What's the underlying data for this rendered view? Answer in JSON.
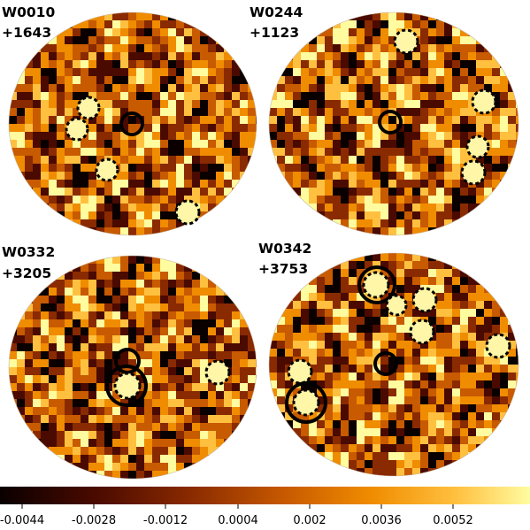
{
  "panels": [
    {
      "label_line1": "W0010",
      "label_line2": "+1643"
    },
    {
      "label_line1": "W0244",
      "label_line2": "+1123"
    },
    {
      "label_line1": "W0332",
      "label_line2": "+3205"
    },
    {
      "label_line1": "W0342",
      "label_line2": "+3753"
    }
  ],
  "colorbar": {
    "ticks": [
      "-0.0044",
      "-0.0028",
      "-0.0012",
      "0.0004",
      "0.002",
      "0.0036",
      "0.0052"
    ],
    "colormap": [
      "#0a0000",
      "#4a0a00",
      "#8a2a00",
      "#c85a00",
      "#f08c00",
      "#ffc040",
      "#fffca0"
    ]
  }
}
